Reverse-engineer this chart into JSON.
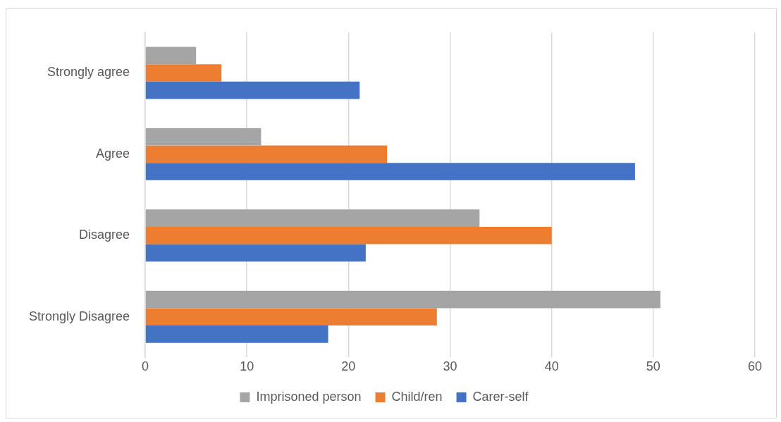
{
  "chart_data": {
    "type": "bar",
    "orientation": "horizontal",
    "categories": [
      "Strongly agree",
      "Agree",
      "Disagree",
      "Strongly Disagree"
    ],
    "series": [
      {
        "name": "Imprisoned person",
        "color": "#a5a5a5",
        "values": [
          5,
          11.4,
          32.9,
          50.7
        ]
      },
      {
        "name": "Child/ren",
        "color": "#ed7d31",
        "values": [
          7.5,
          23.8,
          40,
          28.7
        ]
      },
      {
        "name": "Carer-self",
        "color": "#4472c4",
        "values": [
          21.1,
          48.2,
          21.7,
          18
        ]
      }
    ],
    "xlim": [
      0,
      60
    ],
    "xticks": [
      0,
      10,
      20,
      30,
      40,
      50,
      60
    ],
    "grid": "x",
    "legend": "bottom"
  }
}
